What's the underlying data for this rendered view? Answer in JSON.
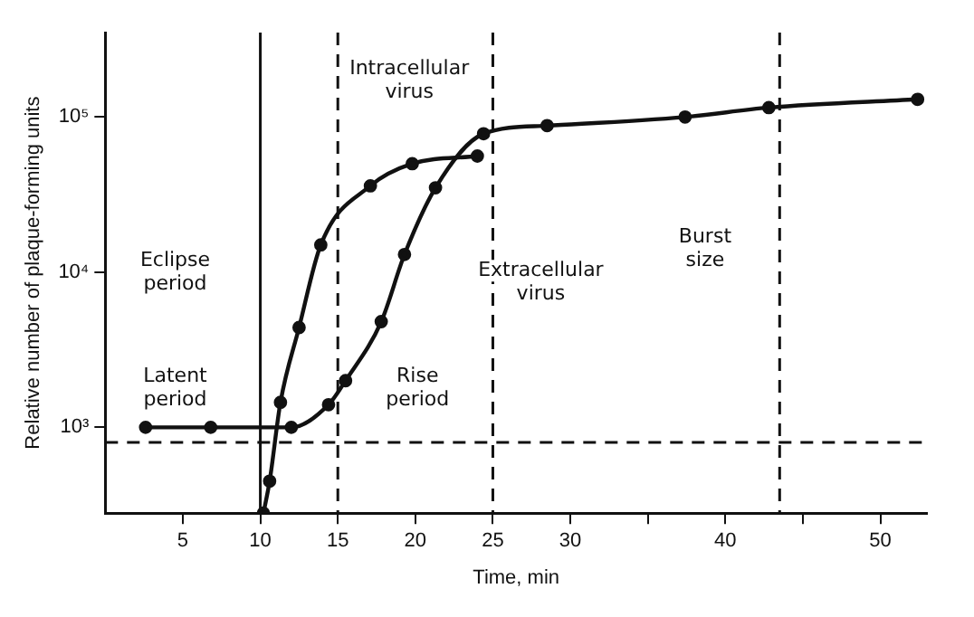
{
  "chart_data": {
    "type": "line",
    "xlabel": "Time, min",
    "ylabel": "Relative number of plaque-forming units",
    "xlim": [
      0,
      53
    ],
    "xticks": [
      5,
      10,
      15,
      20,
      25,
      30,
      {
        "value": 35,
        "label": null
      },
      40,
      {
        "value": 45,
        "label": null
      },
      50
    ],
    "ylim": [
      280,
      350000
    ],
    "yticks": [
      {
        "value": 1000,
        "label": "10³"
      },
      {
        "value": 10000,
        "label": "10⁴"
      },
      {
        "value": 100000,
        "label": "10⁵"
      }
    ],
    "log": "y",
    "grid": false,
    "legend": false,
    "marker": "circle",
    "line_style": "solid",
    "series": [
      {
        "color": "#111111",
        "x": [
          10.2,
          10.6,
          11.3,
          12.5,
          13.9,
          17.1,
          19.8,
          24
        ],
        "values": [
          280,
          450,
          1450,
          4400,
          15000,
          36000,
          50000,
          56000
        ]
      },
      {
        "color": "#111111",
        "x": [
          2.6,
          6.8,
          12,
          14.4,
          15.5,
          17.8,
          19.3,
          21.3,
          24.4,
          28.5,
          37.4,
          42.8,
          52.4
        ],
        "values": [
          1000,
          1000,
          1000,
          1400,
          2000,
          4800,
          13000,
          35000,
          78000,
          88000,
          100000,
          115000,
          130000
        ]
      }
    ],
    "ref_lines": [
      {
        "axis": "x",
        "value": 10,
        "line_style": "solid"
      },
      {
        "axis": "x",
        "value": 15,
        "line_style": "dashed"
      },
      {
        "axis": "x",
        "value": 25,
        "line_style": "dashed"
      },
      {
        "axis": "x",
        "value": 43.5,
        "line_style": "dashed"
      },
      {
        "axis": "y",
        "value": 800,
        "line_style": "dashed"
      }
    ],
    "annotations": [
      "Eclipse period",
      "Latent period",
      "Rise period",
      "Intracellular virus",
      "Extracellular virus",
      "Burst size"
    ]
  }
}
